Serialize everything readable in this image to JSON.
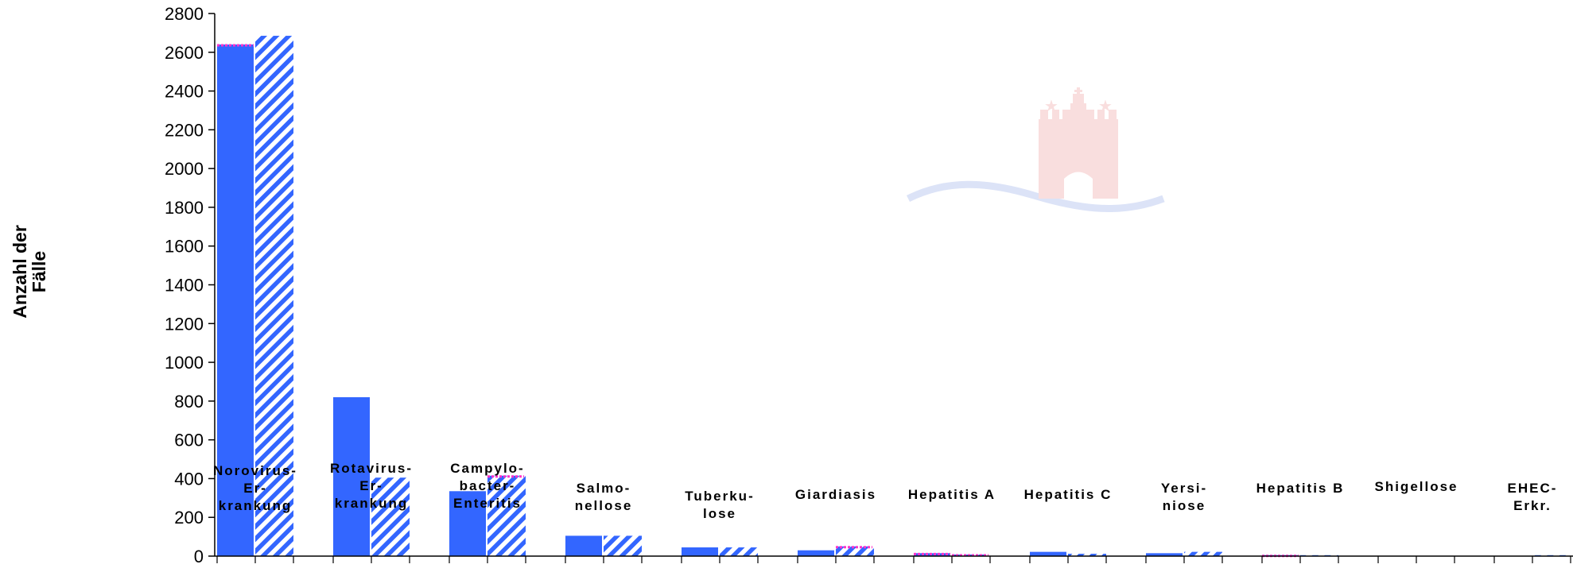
{
  "chart_data": {
    "type": "bar",
    "ylabel": "Anzahl der Fälle",
    "ylabel_lines": [
      "Anzahl der",
      "Fälle"
    ],
    "ylim": [
      0,
      2800
    ],
    "yticks": [
      "0",
      "200",
      "400",
      "600",
      "800",
      "1000",
      "1200",
      "1400",
      "1600",
      "1800",
      "2000",
      "2200",
      "2400",
      "2600",
      "2800"
    ],
    "grid": false,
    "legend": "none",
    "categories": [
      {
        "label": "Norovirus-Er-krankung",
        "lines": [
          "Norovirus-",
          "Er-",
          "krankung"
        ]
      },
      {
        "label": "Rotavirus-Er-krankung",
        "lines": [
          "Rotavirus-",
          "Er-",
          "krankung"
        ]
      },
      {
        "label": "Campylo-bacter-Enteritis",
        "lines": [
          "Campylo-",
          "bacter-",
          "Enteritis"
        ]
      },
      {
        "label": "Salmo-nellose",
        "lines": [
          "Salmo-",
          "nellose"
        ]
      },
      {
        "label": "Tuberku-lose",
        "lines": [
          "Tuberku-",
          "lose"
        ]
      },
      {
        "label": "Giardiasis",
        "lines": [
          "Giardiasis"
        ]
      },
      {
        "label": "Hepatitis A",
        "lines": [
          "Hepatitis A"
        ]
      },
      {
        "label": "Hepatitis C",
        "lines": [
          "Hepatitis C"
        ]
      },
      {
        "label": "Yersi-niose",
        "lines": [
          "Yersi-",
          "niose"
        ]
      },
      {
        "label": "Hepatitis B",
        "lines": [
          "Hepatitis B"
        ]
      },
      {
        "label": "Shigellose",
        "lines": [
          "Shigellose"
        ]
      },
      {
        "label": "EHEC-Erkr.",
        "lines": [
          "EHEC-",
          "Erkr."
        ]
      }
    ],
    "series": [
      {
        "style": "solid",
        "values": [
          2640,
          820,
          335,
          105,
          45,
          30,
          15,
          22,
          15,
          5,
          2,
          2
        ]
      },
      {
        "style": "hatched",
        "values": [
          2685,
          405,
          415,
          105,
          45,
          50,
          8,
          12,
          22,
          5,
          2,
          5
        ]
      }
    ],
    "highlights": [
      {
        "category": 0,
        "series": 0
      },
      {
        "category": 2,
        "series": 1
      },
      {
        "category": 5,
        "series": 1
      },
      {
        "category": 6,
        "series": 0
      },
      {
        "category": 6,
        "series": 1
      },
      {
        "category": 9,
        "series": 0
      }
    ]
  },
  "colors": {
    "bar": "#3366ff",
    "hatch_bg": "#ffffff",
    "highlight": "#ff33cc",
    "axis": "#000000",
    "watermark_red": "#f9dede",
    "watermark_blue": "#dce3f7"
  },
  "watermark": {
    "icon": "hamburg-castle-icon"
  }
}
